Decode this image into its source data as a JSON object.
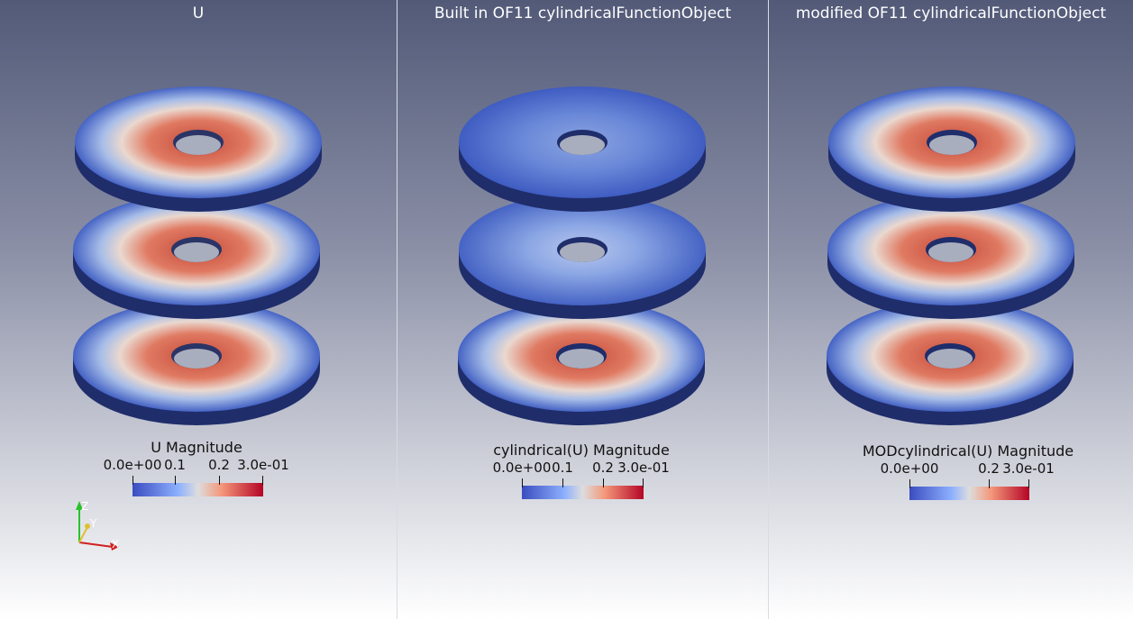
{
  "views": [
    {
      "title": "U",
      "colorbar": {
        "title": "U Magnitude",
        "ticks": [
          "0.0e+00",
          "0.1",
          "0.2",
          "3.0e-01"
        ]
      },
      "pattern": [
        "red",
        "red",
        "red"
      ]
    },
    {
      "title": "Built in OF11 cylindricalFunctionObject",
      "colorbar": {
        "title": "cylindrical(U) Magnitude",
        "ticks": [
          "0.0e+00",
          "0.1",
          "0.2",
          "3.0e-01"
        ]
      },
      "pattern": [
        "blue",
        "blue",
        "red"
      ]
    },
    {
      "title": "modified OF11 cylindricalFunctionObject",
      "colorbar": {
        "title": "MODcylindrical(U) Magnitude",
        "ticks": [
          "0.0e+00",
          "0.2",
          "3.0e-01"
        ]
      },
      "pattern": [
        "red",
        "red",
        "red"
      ]
    }
  ],
  "orientation_axes": {
    "x": "X",
    "y": "Y",
    "z": "Z"
  },
  "colormap": {
    "low": "#3b4cc0",
    "mid": "#dddddd",
    "high": "#b40426"
  }
}
